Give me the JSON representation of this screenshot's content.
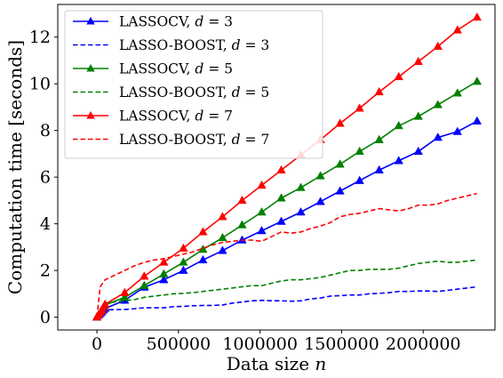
{
  "chart_data": {
    "type": "line",
    "xlabel": "Data size n",
    "ylabel": "Computation time [seconds]",
    "xlim": [
      -240000,
      2440000
    ],
    "ylim": [
      -0.55,
      13.4
    ],
    "xticks": [
      0,
      500000,
      1000000,
      1500000,
      2000000
    ],
    "xtick_labels": [
      "0",
      "500000",
      "1000000",
      "1500000",
      "2000000"
    ],
    "yticks": [
      0,
      2,
      4,
      6,
      8,
      10,
      12
    ],
    "ytick_labels": [
      "0",
      "2",
      "4",
      "6",
      "8",
      "10",
      "12"
    ],
    "legend_position": "top-left",
    "grid": false,
    "series": [
      {
        "name": "LASSOCV, d = 3",
        "color": "#0000ff",
        "style": "solid",
        "marker": "triangle",
        "x": [
          0,
          10000,
          20000,
          30000,
          40000,
          50000,
          170000,
          290000,
          410000,
          530000,
          650000,
          770000,
          890000,
          1010000,
          1130000,
          1250000,
          1370000,
          1490000,
          1610000,
          1730000,
          1850000,
          1970000,
          2090000,
          2210000,
          2330000
        ],
        "y": [
          0.0,
          0.08,
          0.15,
          0.22,
          0.3,
          0.37,
          0.72,
          1.28,
          1.6,
          2.0,
          2.45,
          2.85,
          3.3,
          3.7,
          4.1,
          4.5,
          4.95,
          5.4,
          5.85,
          6.3,
          6.7,
          7.1,
          7.7,
          7.95,
          8.4
        ]
      },
      {
        "name": "LASSO-BOOST, d = 3",
        "color": "#0000ff",
        "style": "dashed",
        "marker": "none",
        "x": [
          0,
          20000,
          50000,
          110000,
          170000,
          230000,
          290000,
          350000,
          410000,
          470000,
          530000,
          590000,
          650000,
          710000,
          770000,
          830000,
          890000,
          950000,
          1010000,
          1070000,
          1130000,
          1190000,
          1250000,
          1310000,
          1370000,
          1430000,
          1490000,
          1550000,
          1610000,
          1670000,
          1730000,
          1790000,
          1850000,
          1910000,
          1970000,
          2030000,
          2090000,
          2150000,
          2210000,
          2270000,
          2330000
        ],
        "y": [
          0.0,
          0.2,
          0.32,
          0.32,
          0.33,
          0.36,
          0.4,
          0.4,
          0.4,
          0.45,
          0.46,
          0.49,
          0.5,
          0.5,
          0.52,
          0.6,
          0.65,
          0.7,
          0.72,
          0.7,
          0.7,
          0.68,
          0.7,
          0.78,
          0.82,
          0.9,
          0.92,
          0.95,
          0.95,
          1.0,
          1.02,
          1.05,
          1.1,
          1.1,
          1.12,
          1.12,
          1.1,
          1.15,
          1.2,
          1.25,
          1.3
        ]
      },
      {
        "name": "LASSOCV, d = 5",
        "color": "#008000",
        "style": "solid",
        "marker": "triangle",
        "x": [
          0,
          10000,
          20000,
          30000,
          40000,
          50000,
          170000,
          290000,
          410000,
          530000,
          650000,
          770000,
          890000,
          1010000,
          1130000,
          1250000,
          1370000,
          1490000,
          1610000,
          1730000,
          1850000,
          1970000,
          2090000,
          2210000,
          2330000
        ],
        "y": [
          0.0,
          0.1,
          0.2,
          0.3,
          0.42,
          0.52,
          0.85,
          1.35,
          1.85,
          2.35,
          2.9,
          3.4,
          3.95,
          4.5,
          5.1,
          5.55,
          6.05,
          6.55,
          7.1,
          7.6,
          8.2,
          8.6,
          9.1,
          9.6,
          10.1
        ]
      },
      {
        "name": "LASSO-BOOST, d = 5",
        "color": "#008000",
        "style": "dashed",
        "marker": "none",
        "x": [
          0,
          20000,
          50000,
          110000,
          170000,
          230000,
          290000,
          350000,
          410000,
          470000,
          530000,
          590000,
          650000,
          710000,
          770000,
          830000,
          890000,
          950000,
          1010000,
          1070000,
          1130000,
          1190000,
          1250000,
          1310000,
          1370000,
          1430000,
          1490000,
          1550000,
          1610000,
          1670000,
          1730000,
          1790000,
          1850000,
          1910000,
          1970000,
          2030000,
          2090000,
          2150000,
          2210000,
          2270000,
          2330000
        ],
        "y": [
          0.0,
          0.35,
          0.6,
          0.65,
          0.7,
          0.75,
          0.85,
          0.9,
          0.95,
          1.0,
          1.02,
          1.05,
          1.1,
          1.15,
          1.2,
          1.25,
          1.3,
          1.35,
          1.35,
          1.45,
          1.55,
          1.6,
          1.6,
          1.65,
          1.7,
          1.8,
          1.9,
          2.0,
          2.0,
          2.05,
          2.05,
          2.05,
          2.1,
          2.2,
          2.3,
          2.35,
          2.4,
          2.35,
          2.35,
          2.4,
          2.45
        ]
      },
      {
        "name": "LASSOCV, d = 7",
        "color": "#ff0000",
        "style": "solid",
        "marker": "triangle",
        "x": [
          0,
          10000,
          20000,
          30000,
          40000,
          50000,
          170000,
          290000,
          410000,
          530000,
          650000,
          770000,
          890000,
          1010000,
          1130000,
          1250000,
          1370000,
          1490000,
          1610000,
          1730000,
          1850000,
          1970000,
          2090000,
          2210000,
          2330000
        ],
        "y": [
          0.0,
          0.1,
          0.2,
          0.3,
          0.42,
          0.55,
          1.05,
          1.75,
          2.35,
          2.95,
          3.65,
          4.3,
          5.0,
          5.65,
          6.3,
          6.95,
          7.6,
          8.3,
          8.95,
          9.65,
          10.3,
          10.95,
          11.6,
          12.3,
          12.85
        ]
      },
      {
        "name": "LASSO-BOOST, d = 7",
        "color": "#ff0000",
        "style": "dashed",
        "marker": "none",
        "x": [
          0,
          20000,
          50000,
          110000,
          170000,
          230000,
          290000,
          350000,
          410000,
          470000,
          530000,
          590000,
          650000,
          710000,
          770000,
          830000,
          890000,
          950000,
          1010000,
          1070000,
          1130000,
          1190000,
          1250000,
          1310000,
          1370000,
          1430000,
          1490000,
          1550000,
          1610000,
          1670000,
          1730000,
          1790000,
          1850000,
          1910000,
          1970000,
          2030000,
          2090000,
          2150000,
          2210000,
          2270000,
          2330000
        ],
        "y": [
          0.0,
          1.3,
          1.6,
          1.8,
          2.0,
          2.2,
          2.35,
          2.45,
          2.5,
          2.6,
          2.7,
          2.8,
          2.95,
          3.1,
          3.2,
          3.25,
          3.3,
          3.3,
          3.25,
          3.45,
          3.65,
          3.6,
          3.65,
          3.8,
          3.9,
          4.05,
          4.3,
          4.4,
          4.45,
          4.55,
          4.65,
          4.6,
          4.55,
          4.65,
          4.8,
          4.8,
          4.85,
          5.0,
          5.1,
          5.2,
          5.3
        ]
      }
    ],
    "legend": [
      {
        "kind": "LASSOCV",
        "param": "3",
        "color": "#0000ff",
        "style": "solid",
        "marker": "triangle"
      },
      {
        "kind": "LASSO-BOOST",
        "param": "3",
        "color": "#0000ff",
        "style": "dashed",
        "marker": "none"
      },
      {
        "kind": "LASSOCV",
        "param": "5",
        "color": "#008000",
        "style": "solid",
        "marker": "triangle"
      },
      {
        "kind": "LASSO-BOOST",
        "param": "5",
        "color": "#008000",
        "style": "dashed",
        "marker": "none"
      },
      {
        "kind": "LASSOCV",
        "param": "7",
        "color": "#ff0000",
        "style": "solid",
        "marker": "triangle"
      },
      {
        "kind": "LASSO-BOOST",
        "param": "7",
        "color": "#ff0000",
        "style": "dashed",
        "marker": "none"
      }
    ]
  }
}
